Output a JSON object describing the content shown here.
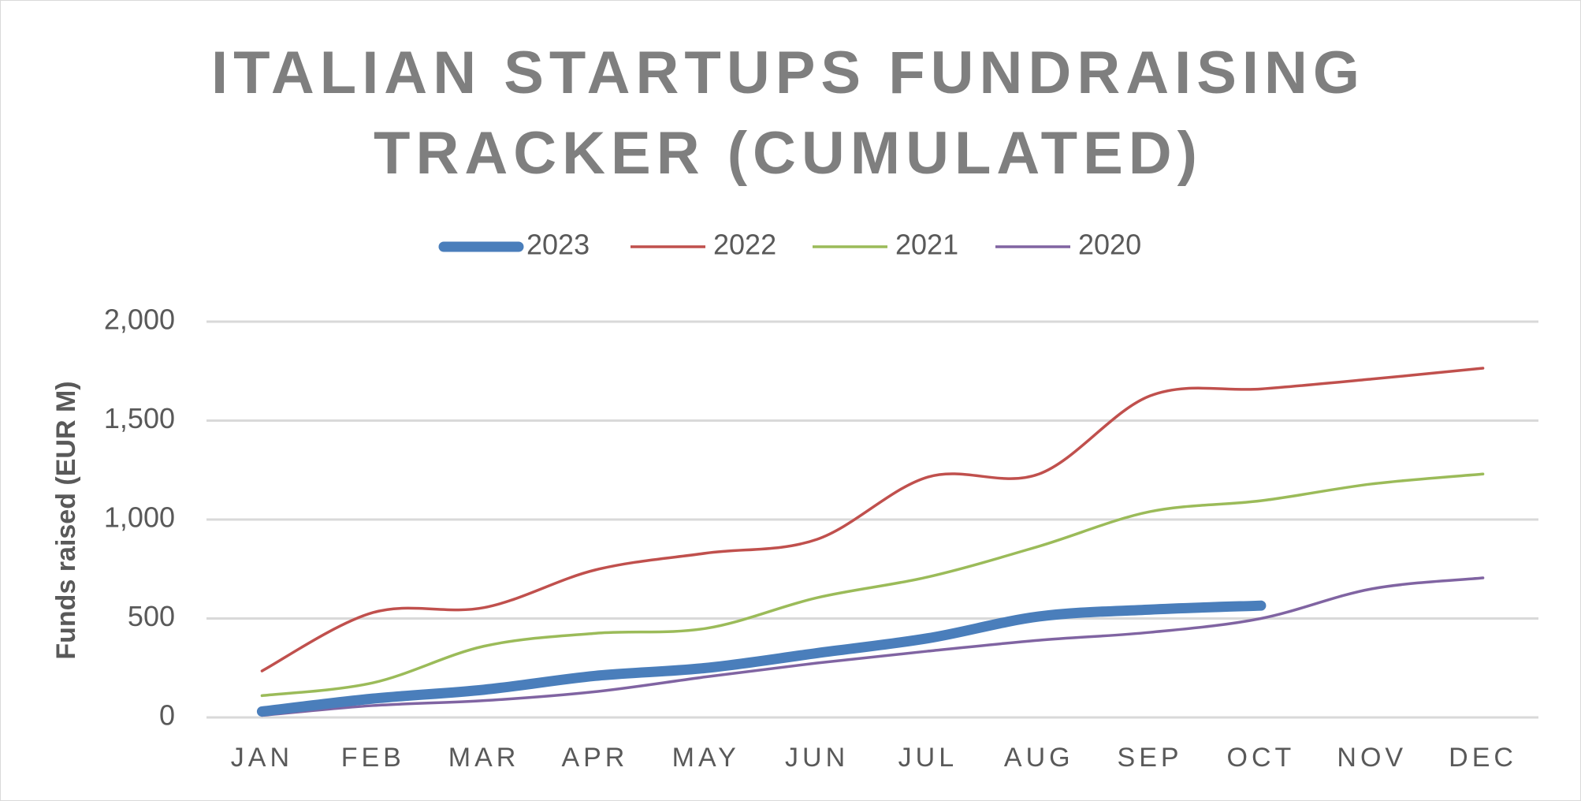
{
  "chart_data": {
    "type": "line",
    "title": "ITALIAN STARTUPS FUNDRAISING TRACKER (CUMULATED)",
    "y_label": "Funds raised (EUR M)",
    "categories": [
      "JAN",
      "FEB",
      "MAR",
      "APR",
      "MAY",
      "JUN",
      "JUL",
      "AUG",
      "SEP",
      "OCT",
      "NOV",
      "DEC"
    ],
    "series": [
      {
        "name": "2023",
        "color": "#4a7ebb",
        "width": 13,
        "values": [
          30,
          95,
          140,
          210,
          250,
          325,
          400,
          510,
          545,
          565,
          null,
          null
        ]
      },
      {
        "name": "2022",
        "color": "#c0504d",
        "width": 3.5,
        "values": [
          235,
          530,
          555,
          745,
          830,
          900,
          1215,
          1230,
          1625,
          1660,
          1710,
          1765
        ]
      },
      {
        "name": "2021",
        "color": "#9bbb59",
        "width": 3.5,
        "values": [
          110,
          175,
          360,
          425,
          450,
          605,
          710,
          865,
          1040,
          1095,
          1180,
          1230
        ]
      },
      {
        "name": "2020",
        "color": "#8064a2",
        "width": 3.5,
        "values": [
          10,
          60,
          85,
          130,
          205,
          275,
          335,
          390,
          430,
          500,
          650,
          705
        ]
      }
    ],
    "ylim": [
      0,
      2000
    ],
    "yticks": [
      0,
      500,
      {
        "value": 1000,
        "label": "1,000"
      },
      {
        "value": 1500,
        "label": "1,500"
      },
      {
        "value": 2000,
        "label": "2,000"
      }
    ],
    "grid": true,
    "legend": "top",
    "smooth": true
  }
}
